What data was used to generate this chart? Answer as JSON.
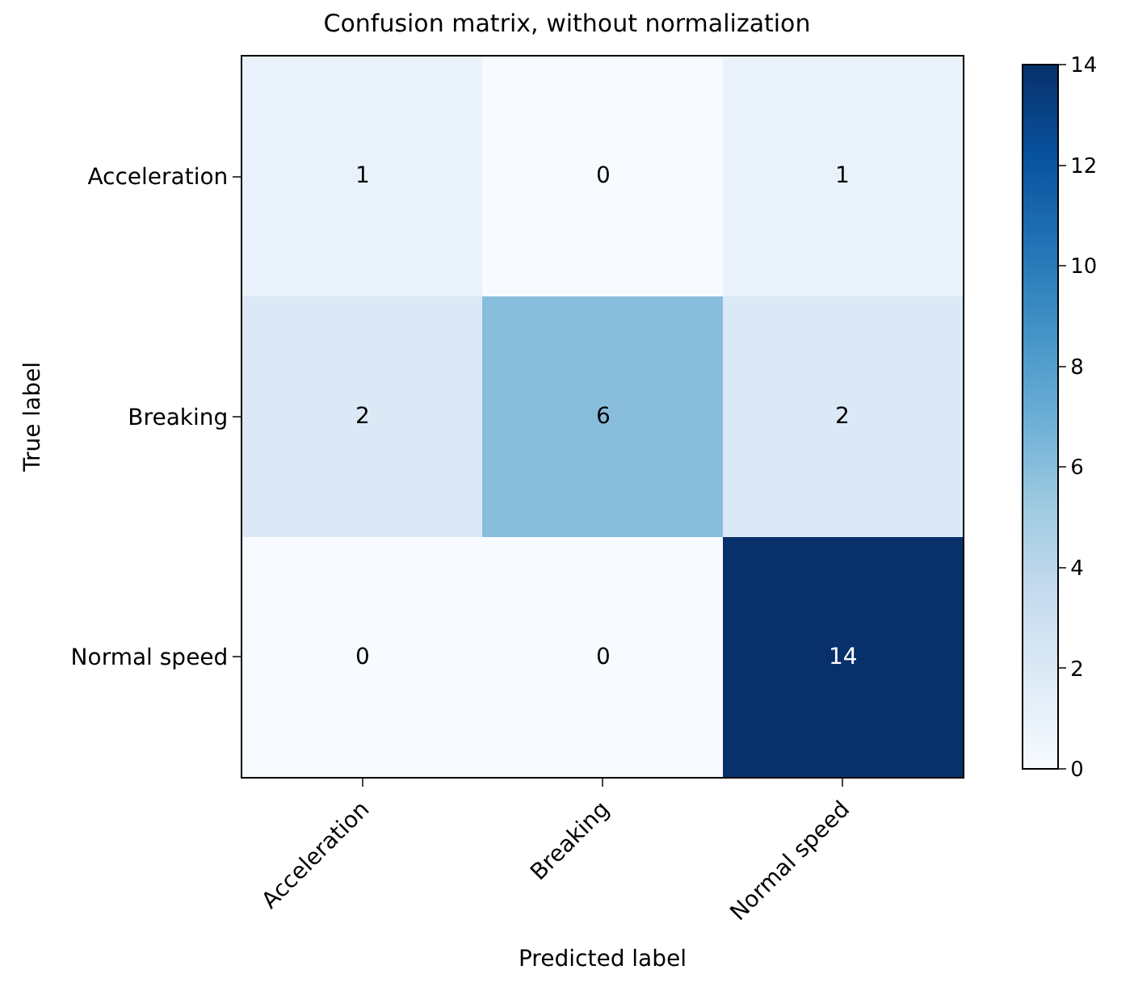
{
  "chart_data": {
    "type": "heatmap",
    "title": "Confusion matrix, without normalization",
    "xlabel": "Predicted label",
    "ylabel": "True label",
    "categories": [
      "Acceleration",
      "Breaking",
      "Normal speed"
    ],
    "y_categories": [
      "Acceleration",
      "Breaking",
      "Normal speed"
    ],
    "cells": [
      [
        1,
        0,
        1
      ],
      [
        2,
        6,
        2
      ],
      [
        0,
        0,
        14
      ]
    ],
    "clim": [
      0,
      14
    ],
    "cticks": [
      0,
      2,
      4,
      6,
      8,
      10,
      12,
      14
    ],
    "data_labels": true
  }
}
